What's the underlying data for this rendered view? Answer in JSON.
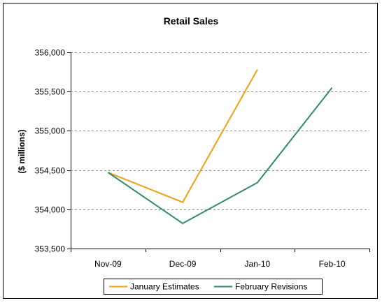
{
  "chart_data": {
    "type": "line",
    "title": "Retail Sales",
    "xlabel": "",
    "ylabel": "($ millions)",
    "categories": [
      "Nov-09",
      "Dec-09",
      "Jan-10",
      "Feb-10"
    ],
    "ylim": [
      353500,
      356000
    ],
    "yticks": [
      353500,
      354000,
      354500,
      355000,
      355500,
      356000
    ],
    "ytick_labels": [
      "353,500",
      "354,000",
      "354,500",
      "355,000",
      "355,500",
      "356,000"
    ],
    "grid": true,
    "legend_position": "bottom",
    "series": [
      {
        "name": "January Estimates",
        "color": "#f5a00f",
        "values": [
          354470,
          354090,
          355780,
          null
        ]
      },
      {
        "name": "February Revisions",
        "color": "#2e8b6b",
        "values": [
          354470,
          353820,
          354340,
          355550
        ]
      }
    ]
  }
}
